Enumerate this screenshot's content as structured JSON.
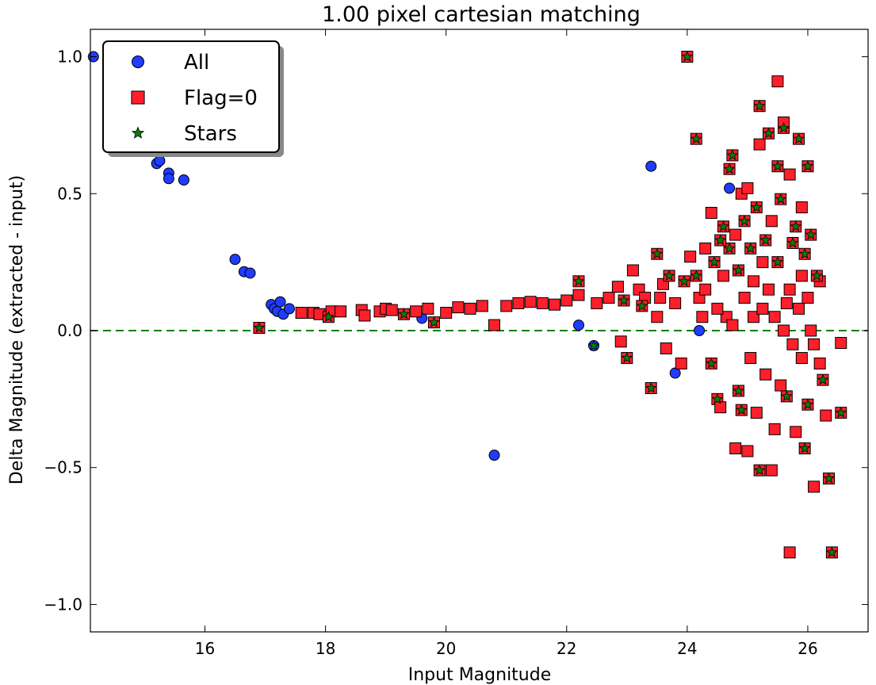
{
  "chart_data": {
    "type": "scatter",
    "title": "1.00 pixel cartesian matching",
    "xlabel": "Input Magnitude",
    "ylabel": "Delta Magnitude (extracted - input)",
    "xlim": [
      14.1,
      27.0
    ],
    "ylim": [
      -1.1,
      1.1
    ],
    "x_ticks": [
      16,
      18,
      20,
      22,
      24,
      26
    ],
    "y_ticks": [
      -1.0,
      -0.5,
      0.0,
      0.5,
      1.0
    ],
    "y_tick_labels": [
      "−1.0",
      "−0.5",
      "0.0",
      "0.5",
      "1.0"
    ],
    "reference_line": {
      "y": 0.0,
      "style": "dashed",
      "color": "#008000"
    },
    "legend": {
      "position": "top-left",
      "entries": [
        {
          "label": "All",
          "marker": "circle",
          "color": "#1f3cff"
        },
        {
          "label": "Flag=0",
          "marker": "square",
          "color": "#ff1f2b"
        },
        {
          "label": "Stars",
          "marker": "star",
          "color": "#0b7a0b"
        }
      ]
    },
    "series": [
      {
        "name": "All",
        "marker": "circle",
        "color": "#1f3cff",
        "points": [
          [
            14.15,
            1.0
          ],
          [
            15.2,
            0.61
          ],
          [
            15.25,
            0.62
          ],
          [
            15.4,
            0.575
          ],
          [
            15.4,
            0.555
          ],
          [
            15.65,
            0.55
          ],
          [
            16.5,
            0.26
          ],
          [
            16.65,
            0.215
          ],
          [
            16.75,
            0.21
          ],
          [
            17.1,
            0.095
          ],
          [
            17.15,
            0.08
          ],
          [
            17.2,
            0.07
          ],
          [
            17.25,
            0.105
          ],
          [
            17.3,
            0.06
          ],
          [
            17.4,
            0.08
          ],
          [
            19.6,
            0.045
          ],
          [
            20.8,
            -0.455
          ],
          [
            22.2,
            0.02
          ],
          [
            22.45,
            -0.055
          ],
          [
            23.4,
            0.6
          ],
          [
            23.8,
            -0.155
          ],
          [
            24.2,
            0.0
          ],
          [
            24.7,
            0.52
          ]
        ]
      },
      {
        "name": "Flag=0",
        "marker": "square",
        "color": "#ff1f2b",
        "points": [
          [
            16.9,
            0.01
          ],
          [
            17.6,
            0.065
          ],
          [
            17.8,
            0.065
          ],
          [
            17.9,
            0.06
          ],
          [
            18.05,
            0.05
          ],
          [
            18.1,
            0.07
          ],
          [
            18.25,
            0.07
          ],
          [
            18.6,
            0.075
          ],
          [
            18.65,
            0.055
          ],
          [
            18.9,
            0.07
          ],
          [
            19.0,
            0.08
          ],
          [
            19.1,
            0.075
          ],
          [
            19.3,
            0.06
          ],
          [
            19.5,
            0.07
          ],
          [
            19.7,
            0.08
          ],
          [
            19.8,
            0.03
          ],
          [
            20.0,
            0.065
          ],
          [
            20.2,
            0.085
          ],
          [
            20.4,
            0.08
          ],
          [
            20.6,
            0.09
          ],
          [
            20.8,
            0.02
          ],
          [
            21.0,
            0.09
          ],
          [
            21.2,
            0.1
          ],
          [
            21.4,
            0.105
          ],
          [
            21.6,
            0.1
          ],
          [
            21.8,
            0.095
          ],
          [
            22.0,
            0.11
          ],
          [
            22.2,
            0.13
          ],
          [
            22.2,
            0.18
          ],
          [
            22.5,
            0.1
          ],
          [
            22.7,
            0.12
          ],
          [
            22.85,
            0.16
          ],
          [
            22.9,
            -0.04
          ],
          [
            23.0,
            -0.1
          ],
          [
            23.1,
            0.22
          ],
          [
            23.2,
            0.15
          ],
          [
            23.3,
            0.12
          ],
          [
            23.4,
            -0.21
          ],
          [
            23.5,
            0.28
          ],
          [
            23.5,
            0.05
          ],
          [
            23.6,
            0.17
          ],
          [
            23.65,
            -0.065
          ],
          [
            23.8,
            0.1
          ],
          [
            23.9,
            -0.12
          ],
          [
            24.0,
            1.0
          ],
          [
            24.05,
            0.27
          ],
          [
            24.15,
            0.7
          ],
          [
            24.2,
            0.12
          ],
          [
            24.3,
            0.3
          ],
          [
            24.4,
            0.43
          ],
          [
            24.4,
            -0.12
          ],
          [
            24.5,
            -0.25
          ],
          [
            24.55,
            -0.28
          ],
          [
            24.6,
            0.2
          ],
          [
            24.7,
            0.59
          ],
          [
            24.75,
            0.64
          ],
          [
            24.8,
            0.35
          ],
          [
            24.8,
            -0.43
          ],
          [
            24.85,
            -0.22
          ],
          [
            24.9,
            0.5
          ],
          [
            24.9,
            -0.29
          ],
          [
            24.95,
            0.12
          ],
          [
            25.0,
            0.52
          ],
          [
            25.0,
            -0.44
          ],
          [
            25.05,
            -0.1
          ],
          [
            25.1,
            0.05
          ],
          [
            25.15,
            -0.3
          ],
          [
            25.2,
            0.82
          ],
          [
            25.2,
            0.68
          ],
          [
            25.2,
            -0.51
          ],
          [
            25.25,
            0.25
          ],
          [
            25.3,
            -0.16
          ],
          [
            25.35,
            0.72
          ],
          [
            25.4,
            0.4
          ],
          [
            25.4,
            -0.51
          ],
          [
            25.45,
            -0.36
          ],
          [
            25.5,
            0.91
          ],
          [
            25.5,
            0.6
          ],
          [
            25.55,
            -0.2
          ],
          [
            25.6,
            0.74
          ],
          [
            25.6,
            0.76
          ],
          [
            25.65,
            0.1
          ],
          [
            25.65,
            -0.24
          ],
          [
            25.7,
            0.57
          ],
          [
            25.7,
            -0.81
          ],
          [
            25.75,
            0.32
          ],
          [
            25.8,
            -0.37
          ],
          [
            25.85,
            0.7
          ],
          [
            25.9,
            0.45
          ],
          [
            25.9,
            0.2
          ],
          [
            25.95,
            -0.43
          ],
          [
            26.0,
            0.6
          ],
          [
            26.0,
            -0.27
          ],
          [
            26.05,
            0.0
          ],
          [
            26.1,
            -0.57
          ],
          [
            26.2,
            0.18
          ],
          [
            26.25,
            -0.18
          ],
          [
            26.3,
            -0.31
          ],
          [
            26.35,
            -0.54
          ],
          [
            26.4,
            -0.81
          ],
          [
            26.55,
            -0.3
          ],
          [
            26.55,
            -0.045
          ],
          [
            24.6,
            0.38
          ],
          [
            24.65,
            0.05
          ],
          [
            24.7,
            0.3
          ],
          [
            24.75,
            0.02
          ],
          [
            24.85,
            0.22
          ],
          [
            24.95,
            0.4
          ],
          [
            25.05,
            0.3
          ],
          [
            25.1,
            0.18
          ],
          [
            25.15,
            0.45
          ],
          [
            25.25,
            0.08
          ],
          [
            25.3,
            0.33
          ],
          [
            25.35,
            0.15
          ],
          [
            25.45,
            0.05
          ],
          [
            25.5,
            0.25
          ],
          [
            25.55,
            0.48
          ],
          [
            25.6,
            0.0
          ],
          [
            25.7,
            0.15
          ],
          [
            25.75,
            -0.05
          ],
          [
            25.8,
            0.38
          ],
          [
            25.85,
            0.08
          ],
          [
            25.9,
            -0.1
          ],
          [
            25.95,
            0.28
          ],
          [
            26.0,
            0.12
          ],
          [
            26.05,
            0.35
          ],
          [
            26.1,
            -0.05
          ],
          [
            26.15,
            0.2
          ],
          [
            26.2,
            -0.12
          ],
          [
            24.3,
            0.15
          ],
          [
            24.45,
            0.25
          ],
          [
            24.5,
            0.08
          ],
          [
            24.55,
            0.33
          ],
          [
            24.15,
            0.2
          ],
          [
            24.25,
            0.05
          ],
          [
            23.95,
            0.18
          ],
          [
            23.7,
            0.2
          ],
          [
            23.55,
            0.12
          ],
          [
            23.25,
            0.09
          ],
          [
            22.95,
            0.11
          ]
        ]
      },
      {
        "name": "Stars",
        "marker": "star",
        "color": "#0b7a0b",
        "points": [
          [
            16.9,
            0.01
          ],
          [
            18.05,
            0.05
          ],
          [
            19.3,
            0.06
          ],
          [
            19.8,
            0.03
          ],
          [
            22.2,
            0.18
          ],
          [
            22.45,
            -0.055
          ],
          [
            23.0,
            -0.1
          ],
          [
            23.4,
            -0.21
          ],
          [
            23.5,
            0.28
          ],
          [
            24.0,
            1.0
          ],
          [
            24.15,
            0.7
          ],
          [
            24.4,
            -0.12
          ],
          [
            24.5,
            -0.25
          ],
          [
            24.7,
            0.59
          ],
          [
            24.75,
            0.64
          ],
          [
            24.85,
            -0.22
          ],
          [
            24.9,
            -0.29
          ],
          [
            25.2,
            0.82
          ],
          [
            25.2,
            -0.51
          ],
          [
            25.35,
            0.72
          ],
          [
            25.5,
            0.6
          ],
          [
            25.6,
            0.74
          ],
          [
            25.65,
            -0.24
          ],
          [
            25.75,
            0.32
          ],
          [
            25.85,
            0.7
          ],
          [
            25.95,
            -0.43
          ],
          [
            26.0,
            0.6
          ],
          [
            26.0,
            -0.27
          ],
          [
            26.25,
            -0.18
          ],
          [
            26.35,
            -0.54
          ],
          [
            26.4,
            -0.81
          ],
          [
            26.55,
            -0.3
          ],
          [
            24.6,
            0.38
          ],
          [
            24.7,
            0.3
          ],
          [
            24.85,
            0.22
          ],
          [
            24.95,
            0.4
          ],
          [
            25.05,
            0.3
          ],
          [
            25.15,
            0.45
          ],
          [
            25.3,
            0.33
          ],
          [
            25.5,
            0.25
          ],
          [
            25.55,
            0.48
          ],
          [
            25.8,
            0.38
          ],
          [
            25.95,
            0.28
          ],
          [
            26.05,
            0.35
          ],
          [
            26.15,
            0.2
          ],
          [
            24.45,
            0.25
          ],
          [
            24.55,
            0.33
          ],
          [
            24.15,
            0.2
          ],
          [
            23.95,
            0.18
          ],
          [
            23.7,
            0.2
          ],
          [
            23.25,
            0.09
          ],
          [
            22.95,
            0.11
          ]
        ]
      }
    ]
  }
}
